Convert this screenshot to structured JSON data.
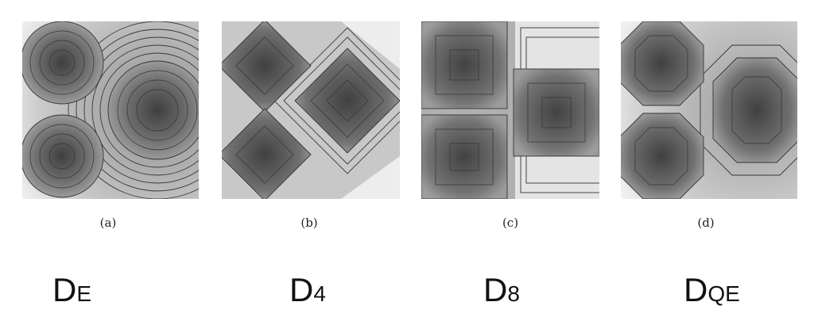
{
  "panels": [
    {
      "caption": "(a)",
      "metric_letter": "D",
      "metric_sub": "E",
      "metric": "euclidean"
    },
    {
      "caption": "(b)",
      "metric_letter": "D",
      "metric_sub": "4",
      "metric": "city-block"
    },
    {
      "caption": "(c)",
      "metric_letter": "D",
      "metric_sub": "8",
      "metric": "chessboard"
    },
    {
      "caption": "(d)",
      "metric_letter": "D",
      "metric_sub": "QE",
      "metric": "quasi-euclidean"
    }
  ],
  "colors": {
    "center": "#444444",
    "edge": "#f2f2f2",
    "contour": "#333333"
  }
}
